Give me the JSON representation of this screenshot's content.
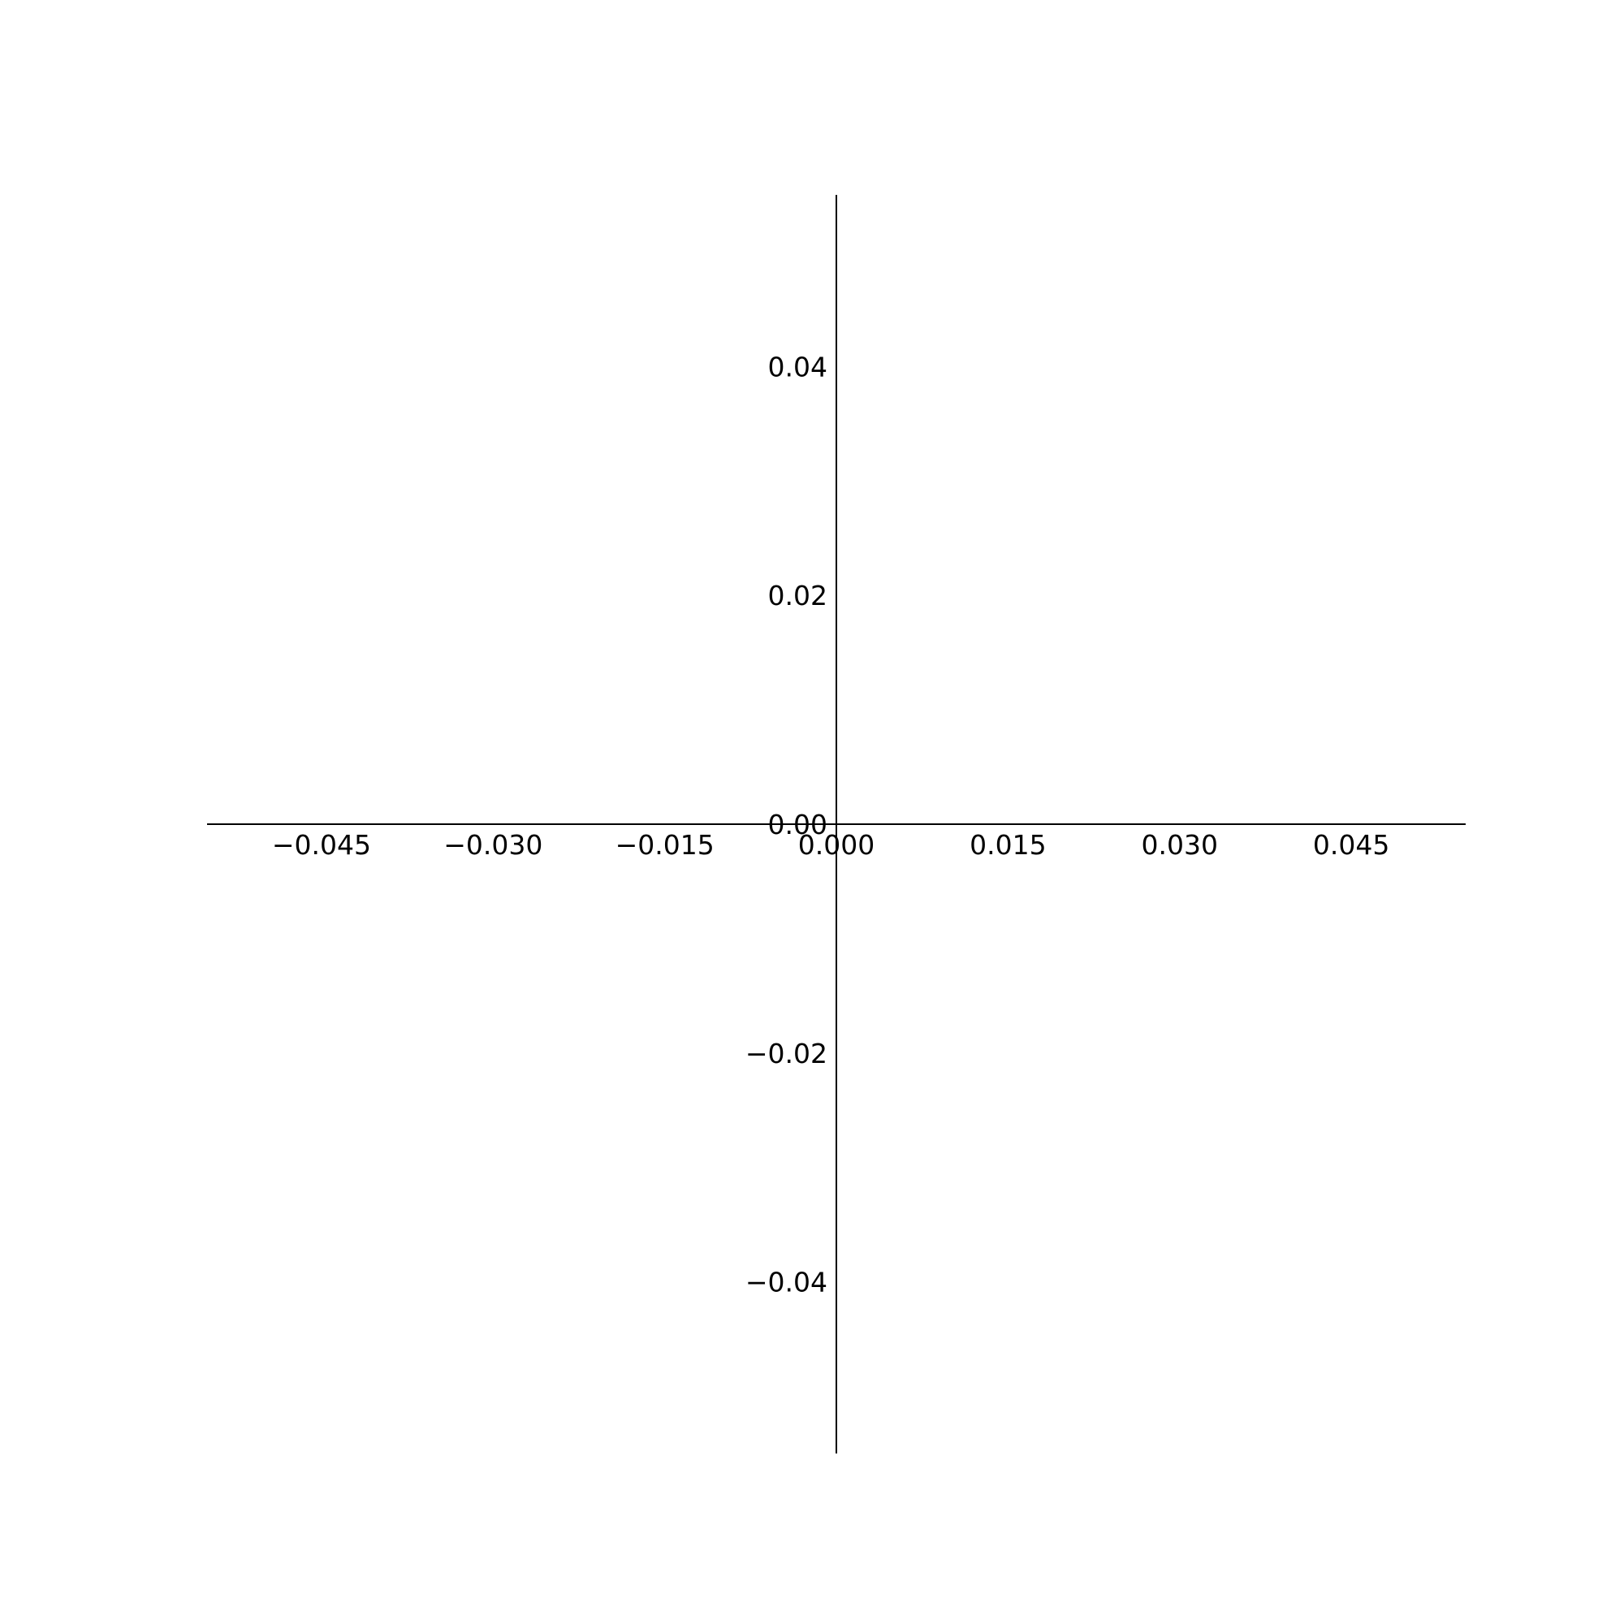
{
  "chart_data": {
    "type": "line",
    "title": "",
    "xlabel": "",
    "ylabel": "",
    "xlim": [
      -0.055,
      0.055
    ],
    "ylim": [
      -0.055,
      0.055
    ],
    "grid": false,
    "spines": "centered at origin",
    "x_ticks": [
      {
        "value": -0.045,
        "label": "−0.045"
      },
      {
        "value": -0.03,
        "label": "−0.030"
      },
      {
        "value": -0.015,
        "label": "−0.015"
      },
      {
        "value": 0.0,
        "label": "0.000"
      },
      {
        "value": 0.015,
        "label": "0.015"
      },
      {
        "value": 0.03,
        "label": "0.030"
      },
      {
        "value": 0.045,
        "label": "0.045"
      }
    ],
    "y_ticks": [
      {
        "value": 0.04,
        "label": "0.04"
      },
      {
        "value": 0.02,
        "label": "0.02"
      },
      {
        "value": 0.0,
        "label": "0.00"
      },
      {
        "value": -0.02,
        "label": "−0.02"
      },
      {
        "value": -0.04,
        "label": "−0.04"
      }
    ],
    "series": []
  }
}
